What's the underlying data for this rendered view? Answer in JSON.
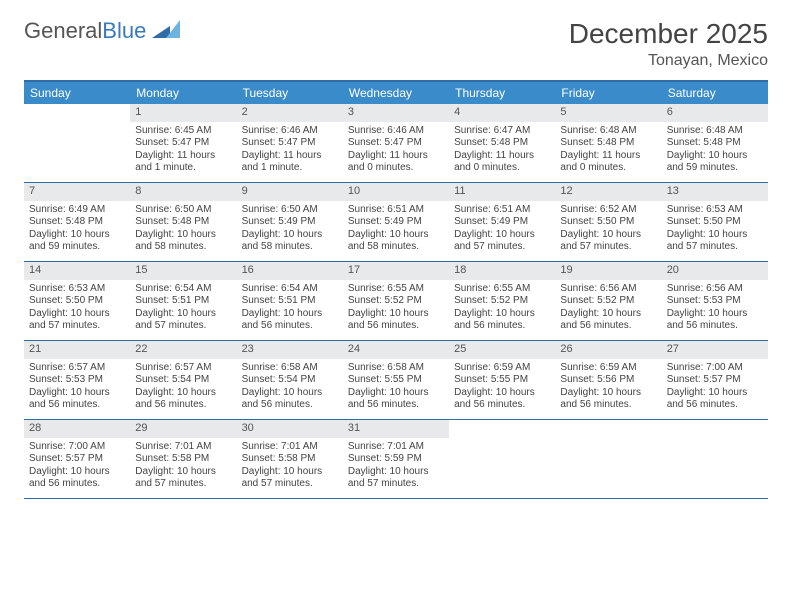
{
  "brand": {
    "word1": "General",
    "word2": "Blue"
  },
  "title": "December 2025",
  "location": "Tonayan, Mexico",
  "colors": {
    "header_bar": "#3a8bc9",
    "rule": "#2f6ca6",
    "daynum_bg": "#e8e9ea",
    "text": "#444444",
    "brand_gray": "#6a6a6a",
    "brand_blue": "#3a7ab8"
  },
  "weekdays": [
    "Sunday",
    "Monday",
    "Tuesday",
    "Wednesday",
    "Thursday",
    "Friday",
    "Saturday"
  ],
  "weeks": [
    [
      {
        "n": "",
        "sunrise": "",
        "sunset": "",
        "daylight": ""
      },
      {
        "n": "1",
        "sunrise": "Sunrise: 6:45 AM",
        "sunset": "Sunset: 5:47 PM",
        "daylight": "Daylight: 11 hours and 1 minute."
      },
      {
        "n": "2",
        "sunrise": "Sunrise: 6:46 AM",
        "sunset": "Sunset: 5:47 PM",
        "daylight": "Daylight: 11 hours and 1 minute."
      },
      {
        "n": "3",
        "sunrise": "Sunrise: 6:46 AM",
        "sunset": "Sunset: 5:47 PM",
        "daylight": "Daylight: 11 hours and 0 minutes."
      },
      {
        "n": "4",
        "sunrise": "Sunrise: 6:47 AM",
        "sunset": "Sunset: 5:48 PM",
        "daylight": "Daylight: 11 hours and 0 minutes."
      },
      {
        "n": "5",
        "sunrise": "Sunrise: 6:48 AM",
        "sunset": "Sunset: 5:48 PM",
        "daylight": "Daylight: 11 hours and 0 minutes."
      },
      {
        "n": "6",
        "sunrise": "Sunrise: 6:48 AM",
        "sunset": "Sunset: 5:48 PM",
        "daylight": "Daylight: 10 hours and 59 minutes."
      }
    ],
    [
      {
        "n": "7",
        "sunrise": "Sunrise: 6:49 AM",
        "sunset": "Sunset: 5:48 PM",
        "daylight": "Daylight: 10 hours and 59 minutes."
      },
      {
        "n": "8",
        "sunrise": "Sunrise: 6:50 AM",
        "sunset": "Sunset: 5:48 PM",
        "daylight": "Daylight: 10 hours and 58 minutes."
      },
      {
        "n": "9",
        "sunrise": "Sunrise: 6:50 AM",
        "sunset": "Sunset: 5:49 PM",
        "daylight": "Daylight: 10 hours and 58 minutes."
      },
      {
        "n": "10",
        "sunrise": "Sunrise: 6:51 AM",
        "sunset": "Sunset: 5:49 PM",
        "daylight": "Daylight: 10 hours and 58 minutes."
      },
      {
        "n": "11",
        "sunrise": "Sunrise: 6:51 AM",
        "sunset": "Sunset: 5:49 PM",
        "daylight": "Daylight: 10 hours and 57 minutes."
      },
      {
        "n": "12",
        "sunrise": "Sunrise: 6:52 AM",
        "sunset": "Sunset: 5:50 PM",
        "daylight": "Daylight: 10 hours and 57 minutes."
      },
      {
        "n": "13",
        "sunrise": "Sunrise: 6:53 AM",
        "sunset": "Sunset: 5:50 PM",
        "daylight": "Daylight: 10 hours and 57 minutes."
      }
    ],
    [
      {
        "n": "14",
        "sunrise": "Sunrise: 6:53 AM",
        "sunset": "Sunset: 5:50 PM",
        "daylight": "Daylight: 10 hours and 57 minutes."
      },
      {
        "n": "15",
        "sunrise": "Sunrise: 6:54 AM",
        "sunset": "Sunset: 5:51 PM",
        "daylight": "Daylight: 10 hours and 57 minutes."
      },
      {
        "n": "16",
        "sunrise": "Sunrise: 6:54 AM",
        "sunset": "Sunset: 5:51 PM",
        "daylight": "Daylight: 10 hours and 56 minutes."
      },
      {
        "n": "17",
        "sunrise": "Sunrise: 6:55 AM",
        "sunset": "Sunset: 5:52 PM",
        "daylight": "Daylight: 10 hours and 56 minutes."
      },
      {
        "n": "18",
        "sunrise": "Sunrise: 6:55 AM",
        "sunset": "Sunset: 5:52 PM",
        "daylight": "Daylight: 10 hours and 56 minutes."
      },
      {
        "n": "19",
        "sunrise": "Sunrise: 6:56 AM",
        "sunset": "Sunset: 5:52 PM",
        "daylight": "Daylight: 10 hours and 56 minutes."
      },
      {
        "n": "20",
        "sunrise": "Sunrise: 6:56 AM",
        "sunset": "Sunset: 5:53 PM",
        "daylight": "Daylight: 10 hours and 56 minutes."
      }
    ],
    [
      {
        "n": "21",
        "sunrise": "Sunrise: 6:57 AM",
        "sunset": "Sunset: 5:53 PM",
        "daylight": "Daylight: 10 hours and 56 minutes."
      },
      {
        "n": "22",
        "sunrise": "Sunrise: 6:57 AM",
        "sunset": "Sunset: 5:54 PM",
        "daylight": "Daylight: 10 hours and 56 minutes."
      },
      {
        "n": "23",
        "sunrise": "Sunrise: 6:58 AM",
        "sunset": "Sunset: 5:54 PM",
        "daylight": "Daylight: 10 hours and 56 minutes."
      },
      {
        "n": "24",
        "sunrise": "Sunrise: 6:58 AM",
        "sunset": "Sunset: 5:55 PM",
        "daylight": "Daylight: 10 hours and 56 minutes."
      },
      {
        "n": "25",
        "sunrise": "Sunrise: 6:59 AM",
        "sunset": "Sunset: 5:55 PM",
        "daylight": "Daylight: 10 hours and 56 minutes."
      },
      {
        "n": "26",
        "sunrise": "Sunrise: 6:59 AM",
        "sunset": "Sunset: 5:56 PM",
        "daylight": "Daylight: 10 hours and 56 minutes."
      },
      {
        "n": "27",
        "sunrise": "Sunrise: 7:00 AM",
        "sunset": "Sunset: 5:57 PM",
        "daylight": "Daylight: 10 hours and 56 minutes."
      }
    ],
    [
      {
        "n": "28",
        "sunrise": "Sunrise: 7:00 AM",
        "sunset": "Sunset: 5:57 PM",
        "daylight": "Daylight: 10 hours and 56 minutes."
      },
      {
        "n": "29",
        "sunrise": "Sunrise: 7:01 AM",
        "sunset": "Sunset: 5:58 PM",
        "daylight": "Daylight: 10 hours and 57 minutes."
      },
      {
        "n": "30",
        "sunrise": "Sunrise: 7:01 AM",
        "sunset": "Sunset: 5:58 PM",
        "daylight": "Daylight: 10 hours and 57 minutes."
      },
      {
        "n": "31",
        "sunrise": "Sunrise: 7:01 AM",
        "sunset": "Sunset: 5:59 PM",
        "daylight": "Daylight: 10 hours and 57 minutes."
      },
      {
        "n": "",
        "sunrise": "",
        "sunset": "",
        "daylight": ""
      },
      {
        "n": "",
        "sunrise": "",
        "sunset": "",
        "daylight": ""
      },
      {
        "n": "",
        "sunrise": "",
        "sunset": "",
        "daylight": ""
      }
    ]
  ]
}
